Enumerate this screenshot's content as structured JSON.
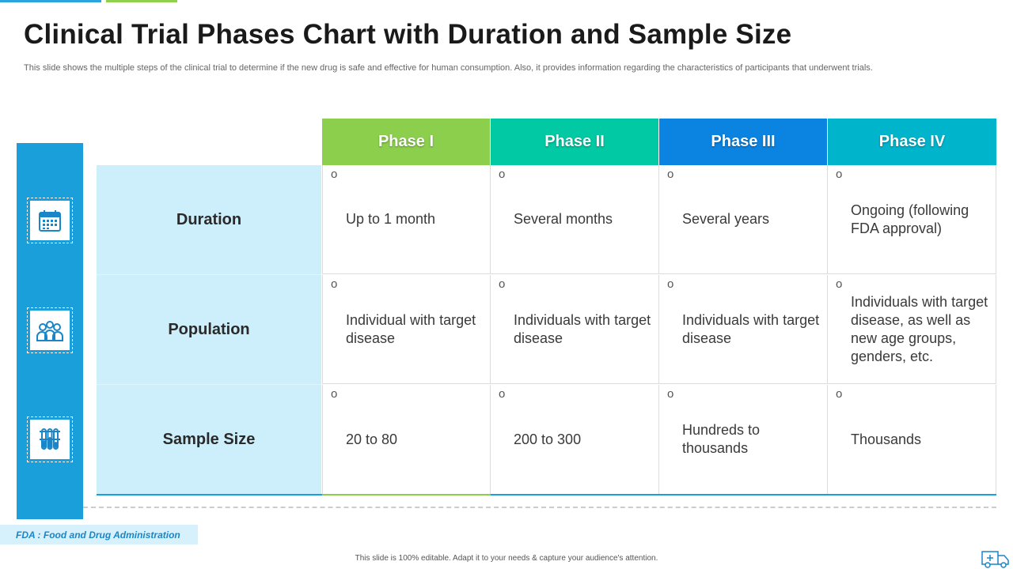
{
  "title": "Clinical Trial Phases Chart with Duration and Sample Size",
  "subtitle": "This slide shows the multiple steps of the clinical trial to determine if the new drug is safe and effective for human consumption. Also, it provides information regarding the characteristics of participants that underwent trials.",
  "phases": [
    "Phase I",
    "Phase II",
    "Phase III",
    "Phase IV"
  ],
  "rows": [
    {
      "label": "Duration",
      "icon": "calendar-icon",
      "cells": [
        "Up to 1 month",
        "Several months",
        "Several years",
        "Ongoing (following FDA approval)"
      ]
    },
    {
      "label": "Population",
      "icon": "group-people-icon",
      "cells": [
        "Individual with target disease",
        "Individuals with target disease",
        "Individuals with target disease",
        "Individuals with target disease, as well as new age groups, genders, etc."
      ]
    },
    {
      "label": "Sample Size",
      "icon": "test-tubes-icon",
      "cells": [
        "20 to 80",
        "200 to 300",
        "Hundreds to thousands",
        "Thousands"
      ]
    }
  ],
  "bullet": "o",
  "footnote": "FDA : Food and Drug Administration",
  "footer_text": "This slide is 100% editable.  Adapt it to your needs & capture your audience's attention.",
  "colors": {
    "phase1": "#8ccf4d",
    "phase2": "#00c9a3",
    "phase3": "#0b83e0",
    "phase4": "#00b4cc",
    "sidebar": "#1a9fdb",
    "row_label_bg": "#cdeefb"
  }
}
